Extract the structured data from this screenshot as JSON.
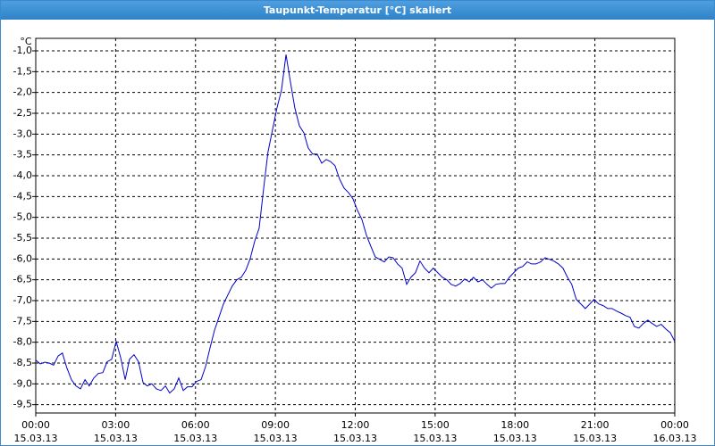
{
  "chart_data": {
    "type": "line",
    "title": "Taupunkt-Temperatur [°C] skaliert",
    "y_unit": "°C",
    "x": [
      0,
      0.17,
      0.34,
      0.5,
      0.67,
      0.84,
      1.0,
      1.17,
      1.34,
      1.51,
      1.68,
      1.85,
      2.01,
      2.18,
      2.35,
      2.52,
      2.68,
      2.85,
      3.02,
      3.19,
      3.36,
      3.52,
      3.69,
      3.86,
      4.03,
      4.19,
      4.36,
      4.53,
      4.7,
      4.87,
      5.03,
      5.2,
      5.37,
      5.54,
      5.7,
      5.87,
      6.04,
      6.21,
      6.38,
      6.54,
      6.71,
      6.88,
      7.05,
      7.21,
      7.38,
      7.55,
      7.72,
      7.89,
      8.05,
      8.22,
      8.39,
      8.56,
      8.72,
      8.89,
      9.06,
      9.23,
      9.4,
      9.56,
      9.73,
      9.9,
      10.07,
      10.23,
      10.4,
      10.57,
      10.74,
      10.91,
      11.07,
      11.24,
      11.41,
      11.58,
      11.74,
      11.91,
      12.08,
      12.25,
      12.42,
      12.58,
      12.75,
      12.92,
      13.09,
      13.26,
      13.42,
      13.59,
      13.76,
      13.93,
      14.09,
      14.26,
      14.43,
      14.6,
      14.77,
      14.93,
      15.1,
      15.27,
      15.44,
      15.6,
      15.77,
      15.94,
      16.11,
      16.28,
      16.44,
      16.61,
      16.78,
      16.95,
      17.11,
      17.28,
      17.45,
      17.62,
      17.79,
      17.95,
      18.12,
      18.29,
      18.46,
      18.62,
      18.79,
      18.96,
      19.13,
      19.3,
      19.46,
      19.63,
      19.8,
      19.97,
      20.13,
      20.3,
      20.47,
      20.64,
      20.81,
      20.97,
      21.14,
      21.31,
      21.48,
      21.64,
      21.81,
      21.98,
      22.15,
      22.32,
      22.48,
      22.65,
      22.82,
      22.99,
      23.15,
      23.32,
      23.49,
      23.66,
      23.83,
      24
    ],
    "series": [
      {
        "name": "Taupunkt-Temperatur",
        "color": "#0000cc",
        "values": [
          -8.43,
          -8.52,
          -8.48,
          -8.5,
          -8.55,
          -8.33,
          -8.26,
          -8.62,
          -8.9,
          -9.05,
          -9.12,
          -8.9,
          -9.05,
          -8.86,
          -8.75,
          -8.73,
          -8.47,
          -8.41,
          -7.98,
          -8.37,
          -8.9,
          -8.41,
          -8.3,
          -8.47,
          -8.97,
          -9.05,
          -9.0,
          -9.12,
          -9.16,
          -9.05,
          -9.22,
          -9.12,
          -8.86,
          -9.16,
          -9.07,
          -9.07,
          -8.94,
          -8.9,
          -8.58,
          -8.15,
          -7.72,
          -7.4,
          -7.08,
          -6.87,
          -6.65,
          -6.5,
          -6.44,
          -6.27,
          -6.0,
          -5.58,
          -5.26,
          -4.3,
          -3.44,
          -2.9,
          -2.37,
          -1.94,
          -1.09,
          -1.73,
          -2.37,
          -2.8,
          -2.97,
          -3.33,
          -3.48,
          -3.48,
          -3.7,
          -3.61,
          -3.66,
          -3.76,
          -4.08,
          -4.3,
          -4.4,
          -4.55,
          -4.83,
          -5.05,
          -5.43,
          -5.69,
          -5.95,
          -6.01,
          -6.07,
          -5.95,
          -5.97,
          -6.12,
          -6.22,
          -6.61,
          -6.44,
          -6.33,
          -6.05,
          -6.22,
          -6.33,
          -6.22,
          -6.33,
          -6.44,
          -6.5,
          -6.61,
          -6.65,
          -6.59,
          -6.48,
          -6.55,
          -6.44,
          -6.55,
          -6.5,
          -6.61,
          -6.7,
          -6.61,
          -6.59,
          -6.59,
          -6.44,
          -6.33,
          -6.22,
          -6.18,
          -6.07,
          -6.12,
          -6.12,
          -6.07,
          -5.97,
          -6.01,
          -6.05,
          -6.12,
          -6.22,
          -6.44,
          -6.61,
          -6.97,
          -7.08,
          -7.19,
          -7.08,
          -6.97,
          -7.08,
          -7.12,
          -7.19,
          -7.19,
          -7.25,
          -7.3,
          -7.36,
          -7.4,
          -7.62,
          -7.66,
          -7.55,
          -7.47,
          -7.55,
          -7.62,
          -7.57,
          -7.68,
          -7.77,
          -7.98
        ]
      }
    ],
    "xlim": [
      0,
      24
    ],
    "ylim": [
      -9.7,
      -0.7
    ],
    "xticks": [
      {
        "value": 0,
        "label": "00:00"
      },
      {
        "value": 3,
        "label": "03:00"
      },
      {
        "value": 6,
        "label": "06:00"
      },
      {
        "value": 9,
        "label": "09:00"
      },
      {
        "value": 12,
        "label": "12:00"
      },
      {
        "value": 15,
        "label": "15:00"
      },
      {
        "value": 18,
        "label": "18:00"
      },
      {
        "value": 21,
        "label": "21:00"
      },
      {
        "value": 24,
        "label": "00:00"
      }
    ],
    "xtick_dates": [
      "15.03.13",
      "15.03.13",
      "15.03.13",
      "15.03.13",
      "15.03.13",
      "15.03.13",
      "15.03.13",
      "15.03.13",
      "16.03.13"
    ],
    "yticks": [
      {
        "value": -1,
        "label": "-1,0"
      },
      {
        "value": -1.5,
        "label": "-1,5"
      },
      {
        "value": -2,
        "label": "-2,0"
      },
      {
        "value": -2.5,
        "label": "-2,5"
      },
      {
        "value": -3,
        "label": "-3,0"
      },
      {
        "value": -3.5,
        "label": "-3,5"
      },
      {
        "value": -4,
        "label": "-4,0"
      },
      {
        "value": -4.5,
        "label": "-4,5"
      },
      {
        "value": -5,
        "label": "-5,0"
      },
      {
        "value": -5.5,
        "label": "-5,5"
      },
      {
        "value": -6,
        "label": "-6,0"
      },
      {
        "value": -6.5,
        "label": "-6,5"
      },
      {
        "value": -7,
        "label": "-7,0"
      },
      {
        "value": -7.5,
        "label": "-7,5"
      },
      {
        "value": -8,
        "label": "-8,0"
      },
      {
        "value": -8.5,
        "label": "-8,5"
      },
      {
        "value": -9,
        "label": "-9,0"
      },
      {
        "value": -9.5,
        "label": "-9,5"
      }
    ],
    "grid": true
  }
}
